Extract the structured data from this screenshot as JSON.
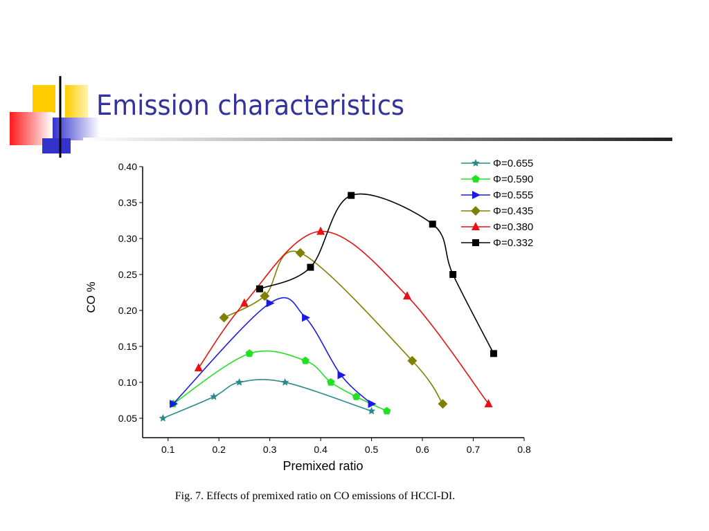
{
  "slide_title": "Emission characteristics",
  "caption": "Fig. 7. Effects of premixed ratio on CO emissions of HCCI-DI.",
  "chart_data": {
    "type": "line",
    "xlabel": "Premixed ratio",
    "ylabel": "CO %",
    "xlim": [
      0.05,
      0.8
    ],
    "ylim": [
      0.023,
      0.4
    ],
    "xticks": [
      0.1,
      0.2,
      0.3,
      0.4,
      0.5,
      0.6,
      0.7,
      0.8
    ],
    "yticks": [
      {
        "value": 0.05,
        "label": "0.05"
      },
      {
        "value": 0.1,
        "label": "0.10"
      },
      0.15,
      {
        "value": 0.2,
        "label": "0.20"
      },
      0.25,
      {
        "value": 0.3,
        "label": "0.30"
      },
      0.35,
      {
        "value": 0.4,
        "label": "0.40"
      }
    ],
    "legend": "upper right",
    "series": [
      {
        "name": "Φ=0.655",
        "color": "#2a8a8a",
        "marker": "star",
        "x": [
          0.09,
          0.19,
          0.24,
          0.33,
          0.5
        ],
        "values": [
          0.05,
          0.08,
          0.1,
          0.1,
          0.06
        ]
      },
      {
        "name": "Φ=0.590",
        "color": "#22e022",
        "marker": "pentagon",
        "x": [
          0.11,
          0.26,
          0.37,
          0.42,
          0.47,
          0.53
        ],
        "values": [
          0.07,
          0.14,
          0.13,
          0.1,
          0.08,
          0.06
        ]
      },
      {
        "name": "Φ=0.555",
        "color": "#1a1ae6",
        "marker": "triangle-right",
        "x": [
          0.11,
          0.3,
          0.37,
          0.44,
          0.5
        ],
        "values": [
          0.07,
          0.21,
          0.19,
          0.11,
          0.07
        ]
      },
      {
        "name": "Φ=0.435",
        "color": "#808000",
        "marker": "diamond",
        "x": [
          0.21,
          0.29,
          0.36,
          0.58,
          0.64
        ],
        "values": [
          0.19,
          0.22,
          0.28,
          0.13,
          0.07
        ]
      },
      {
        "name": "Φ=0.380",
        "color": "#e81010",
        "marker": "triangle-up",
        "x": [
          0.16,
          0.25,
          0.4,
          0.57,
          0.73
        ],
        "values": [
          0.12,
          0.21,
          0.31,
          0.22,
          0.07
        ]
      },
      {
        "name": "Φ=0.332",
        "color": "#000000",
        "marker": "square",
        "x": [
          0.28,
          0.38,
          0.46,
          0.62,
          0.66,
          0.74
        ],
        "values": [
          0.23,
          0.26,
          0.36,
          0.32,
          0.25,
          0.14
        ]
      }
    ]
  }
}
